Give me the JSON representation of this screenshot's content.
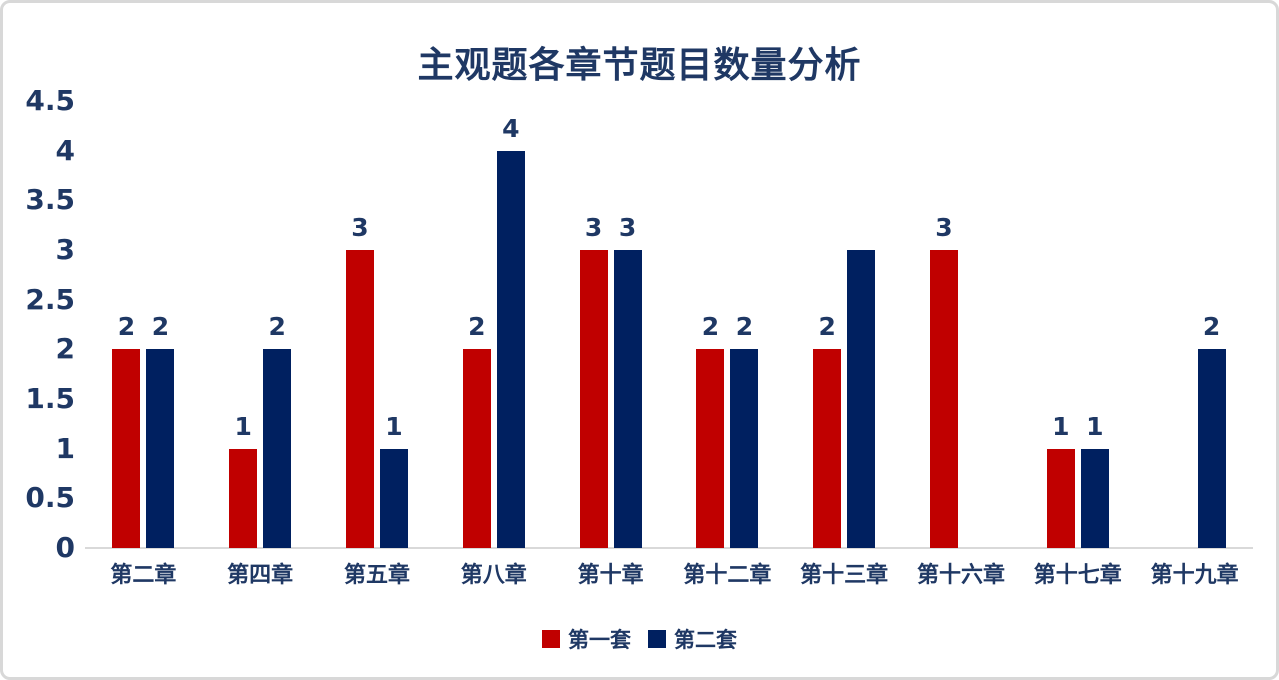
{
  "chart_data": {
    "type": "bar",
    "title": "主观题各章节题目数量分析",
    "categories": [
      "第二章",
      "第四章",
      "第五章",
      "第八章",
      "第十章",
      "第十二章",
      "第十三章",
      "第十六章",
      "第十七章",
      "第十九章"
    ],
    "series": [
      {
        "name": "第一套",
        "color": "#C00000",
        "values": [
          2,
          1,
          3,
          2,
          3,
          2,
          2,
          3,
          1,
          null
        ],
        "data_labels": [
          "2",
          "1",
          "3",
          "2",
          "3",
          "2",
          "2",
          "3",
          "1",
          ""
        ]
      },
      {
        "name": "第二套",
        "color": "#002060",
        "values": [
          2,
          2,
          1,
          4,
          3,
          2,
          3,
          null,
          1,
          2
        ],
        "data_labels": [
          "2",
          "2",
          "1",
          "4",
          "3",
          "2",
          "",
          "",
          "1",
          "2"
        ]
      }
    ],
    "y_axis": {
      "min": 0,
      "max": 4.5,
      "step": 0.5,
      "ticks": [
        "4.5",
        "4",
        "3.5",
        "3",
        "2.5",
        "2",
        "1.5",
        "1",
        "0.5",
        "0"
      ]
    },
    "xlabel": "",
    "ylabel": "",
    "grid": false,
    "legend_position": "bottom",
    "colors": {
      "text": "#1F3864",
      "axis_line": "#D9D9D9",
      "background": "#FFFFFF",
      "frame_border": "#D8D8D8"
    }
  }
}
